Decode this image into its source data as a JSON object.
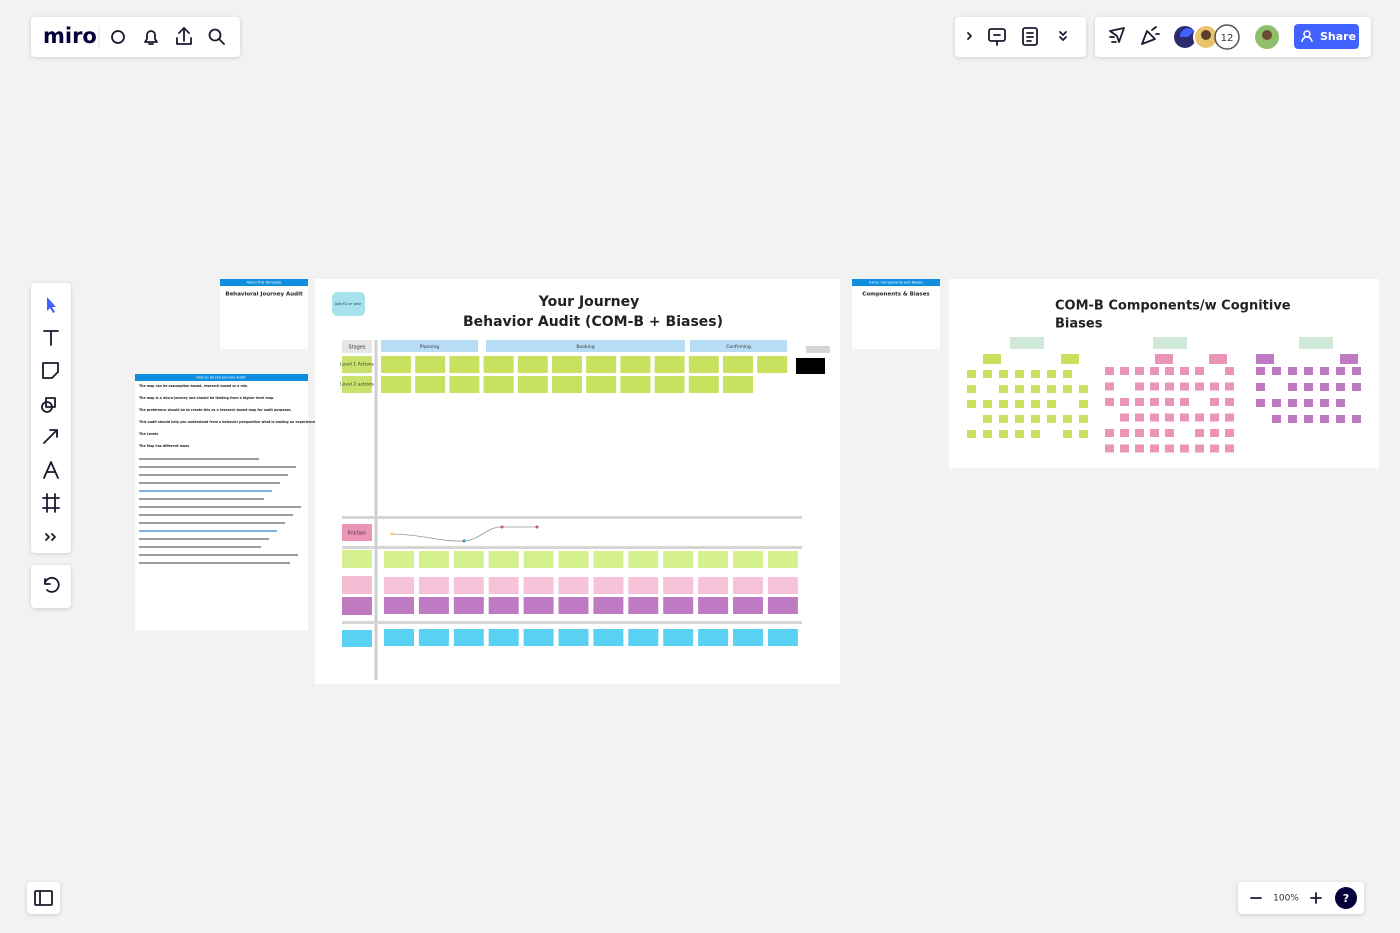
{
  "toolbar": {
    "logo": "miro",
    "collaborator_count": "12",
    "share": "Share"
  },
  "zoom": {
    "level": "100%",
    "help": "?"
  },
  "frames": {
    "about": {
      "header": "About this Template",
      "title": "Behavioral Journey Audit"
    },
    "how_to": {
      "header": "How to do the Journey Audit",
      "paragraphs": [
        "The map can be assumption based, research based or a mix.",
        "The map is a micro journey and should be feeding from a higher level map.",
        "The preference should be to create this as a research based map for audit purposes.",
        "This audit should help you understand from a behavior perspective what is making an experience difficult for you customer or user.",
        "The Levels",
        "The Map has different lanes"
      ]
    },
    "journey": {
      "title_line1": "Your Journey",
      "title_line2": "Behavior Audit (COM-B + Biases)",
      "note": "Add EU or year",
      "stages_label": "Stages",
      "stages": [
        "Planning",
        "Booking",
        "Confirming"
      ],
      "level1": "Level 1 Actions",
      "level2": "Level 2 actions",
      "friction": "Friction"
    },
    "components": {
      "header": "Extra: Components and Biases",
      "title": "Components & Biases"
    },
    "comb": {
      "title_line1": "COM-B Components/w Cognitive",
      "title_line2": "Biases"
    }
  }
}
